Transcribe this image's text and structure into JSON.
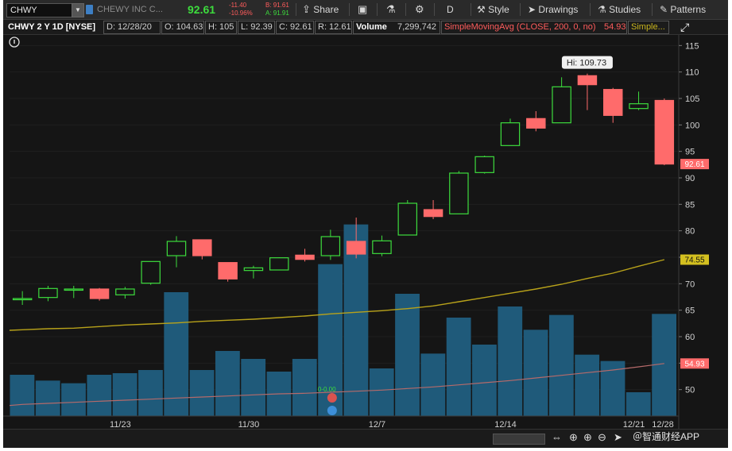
{
  "toolbar": {
    "symbol": "CHWY",
    "company": "CHEWY INC C...",
    "last": "92.61",
    "net_change": "-11.40",
    "pct_change": "-10.96%",
    "bid": "B: 91.61",
    "ask": "A: 91.91",
    "share": "Share",
    "aggregation": "D",
    "style": "Style",
    "drawings": "Drawings",
    "studies": "Studies",
    "patterns": "Patterns"
  },
  "info": {
    "title": "CHWY 2 Y 1D [NYSE]",
    "date": "D: 12/28/20",
    "open": "O: 104.63",
    "high": "H: 105",
    "low": "L: 92.39",
    "close": "C: 92.61",
    "range": "R: 12.61",
    "volume_label": "Volume",
    "volume_value": "7,299,742",
    "sma_label": "SimpleMovingAvg (CLOSE, 200, 0, no)",
    "sma_value": "54.93",
    "sma_more": "Simple..."
  },
  "chart": {
    "hi_label": "Hi: 109.73",
    "y_ticks": [
      "115",
      "110",
      "105",
      "100",
      "95",
      "90",
      "85",
      "80",
      "75",
      "70",
      "65",
      "60",
      "55",
      "50"
    ],
    "x_ticks": [
      "11/23",
      "11/30",
      "12/7",
      "12/14",
      "12/21",
      "12/28"
    ],
    "price_badge": "92.61",
    "ma_badge": "74.55",
    "sma_badge": "54.93",
    "event_text": "0-0.00",
    "colors": {
      "up": "#3ddc3d",
      "down": "#ff6b6b",
      "volume": "#1f5a7a",
      "ma": "#b8a21a",
      "sma": "#b56a6a"
    }
  },
  "chart_data": {
    "type": "candlestick",
    "ylim": [
      45,
      117
    ],
    "candles": [
      {
        "o": 67.2,
        "h": 68.6,
        "l": 66.0,
        "c": 67.2
      },
      {
        "o": 67.4,
        "h": 69.6,
        "l": 66.7,
        "c": 69.1
      },
      {
        "o": 68.8,
        "h": 69.6,
        "l": 67.3,
        "c": 69.0
      },
      {
        "o": 69.0,
        "h": 69.2,
        "l": 66.8,
        "c": 67.2
      },
      {
        "o": 67.9,
        "h": 69.4,
        "l": 67.2,
        "c": 69.0
      },
      {
        "o": 70.1,
        "h": 74.2,
        "l": 69.8,
        "c": 74.2
      },
      {
        "o": 75.3,
        "h": 79.0,
        "l": 73.1,
        "c": 78.0
      },
      {
        "o": 78.3,
        "h": 78.3,
        "l": 74.6,
        "c": 75.3
      },
      {
        "o": 74.0,
        "h": 74.0,
        "l": 70.4,
        "c": 70.9
      },
      {
        "o": 72.5,
        "h": 73.4,
        "l": 71.0,
        "c": 73.0
      },
      {
        "o": 72.6,
        "h": 75.0,
        "l": 72.6,
        "c": 74.9
      },
      {
        "o": 75.4,
        "h": 76.6,
        "l": 74.2,
        "c": 74.6
      },
      {
        "o": 75.3,
        "h": 80.2,
        "l": 74.5,
        "c": 78.9
      },
      {
        "o": 78.0,
        "h": 82.5,
        "l": 74.8,
        "c": 75.6
      },
      {
        "o": 75.7,
        "h": 79.1,
        "l": 75.2,
        "c": 78.1
      },
      {
        "o": 79.2,
        "h": 85.8,
        "l": 79.2,
        "c": 85.2
      },
      {
        "o": 84.0,
        "h": 85.8,
        "l": 82.2,
        "c": 82.7
      },
      {
        "o": 83.2,
        "h": 91.3,
        "l": 83.2,
        "c": 90.9
      },
      {
        "o": 91.0,
        "h": 94.2,
        "l": 90.8,
        "c": 94.0
      },
      {
        "o": 96.1,
        "h": 101.2,
        "l": 96.1,
        "c": 100.4
      },
      {
        "o": 101.2,
        "h": 102.6,
        "l": 98.8,
        "c": 99.4
      },
      {
        "o": 100.4,
        "h": 109.0,
        "l": 100.4,
        "c": 107.2
      },
      {
        "o": 109.3,
        "h": 109.7,
        "l": 102.8,
        "c": 107.6
      },
      {
        "o": 106.7,
        "h": 107.0,
        "l": 100.4,
        "c": 101.8
      },
      {
        "o": 103.1,
        "h": 106.3,
        "l": 102.8,
        "c": 104.0
      },
      {
        "o": 104.63,
        "h": 105.0,
        "l": 92.39,
        "c": 92.61
      }
    ],
    "volume_bars": [
      52.8,
      51.7,
      51.2,
      52.8,
      53.1,
      53.7,
      68.4,
      53.7,
      57.3,
      55.8,
      53.4,
      55.8,
      73.7,
      81.2,
      54.0,
      68.1,
      56.8,
      63.6,
      58.5,
      65.7,
      61.3,
      64.1,
      56.6,
      55.4,
      49.5,
      64.3
    ],
    "ma_line": [
      61.3,
      61.5,
      61.6,
      61.9,
      62.2,
      62.4,
      62.6,
      62.9,
      63.1,
      63.3,
      63.6,
      63.9,
      64.3,
      64.6,
      64.9,
      65.3,
      65.8,
      66.6,
      67.4,
      68.2,
      69.0,
      69.9,
      71.0,
      72.0,
      73.3,
      74.55
    ],
    "sma_line": [
      47.2,
      47.4,
      47.6,
      47.8,
      48.0,
      48.2,
      48.4,
      48.6,
      48.8,
      49.0,
      49.2,
      49.3,
      49.5,
      49.7,
      49.9,
      50.2,
      50.5,
      50.9,
      51.3,
      51.7,
      52.2,
      52.7,
      53.2,
      53.7,
      54.3,
      54.93
    ]
  }
}
